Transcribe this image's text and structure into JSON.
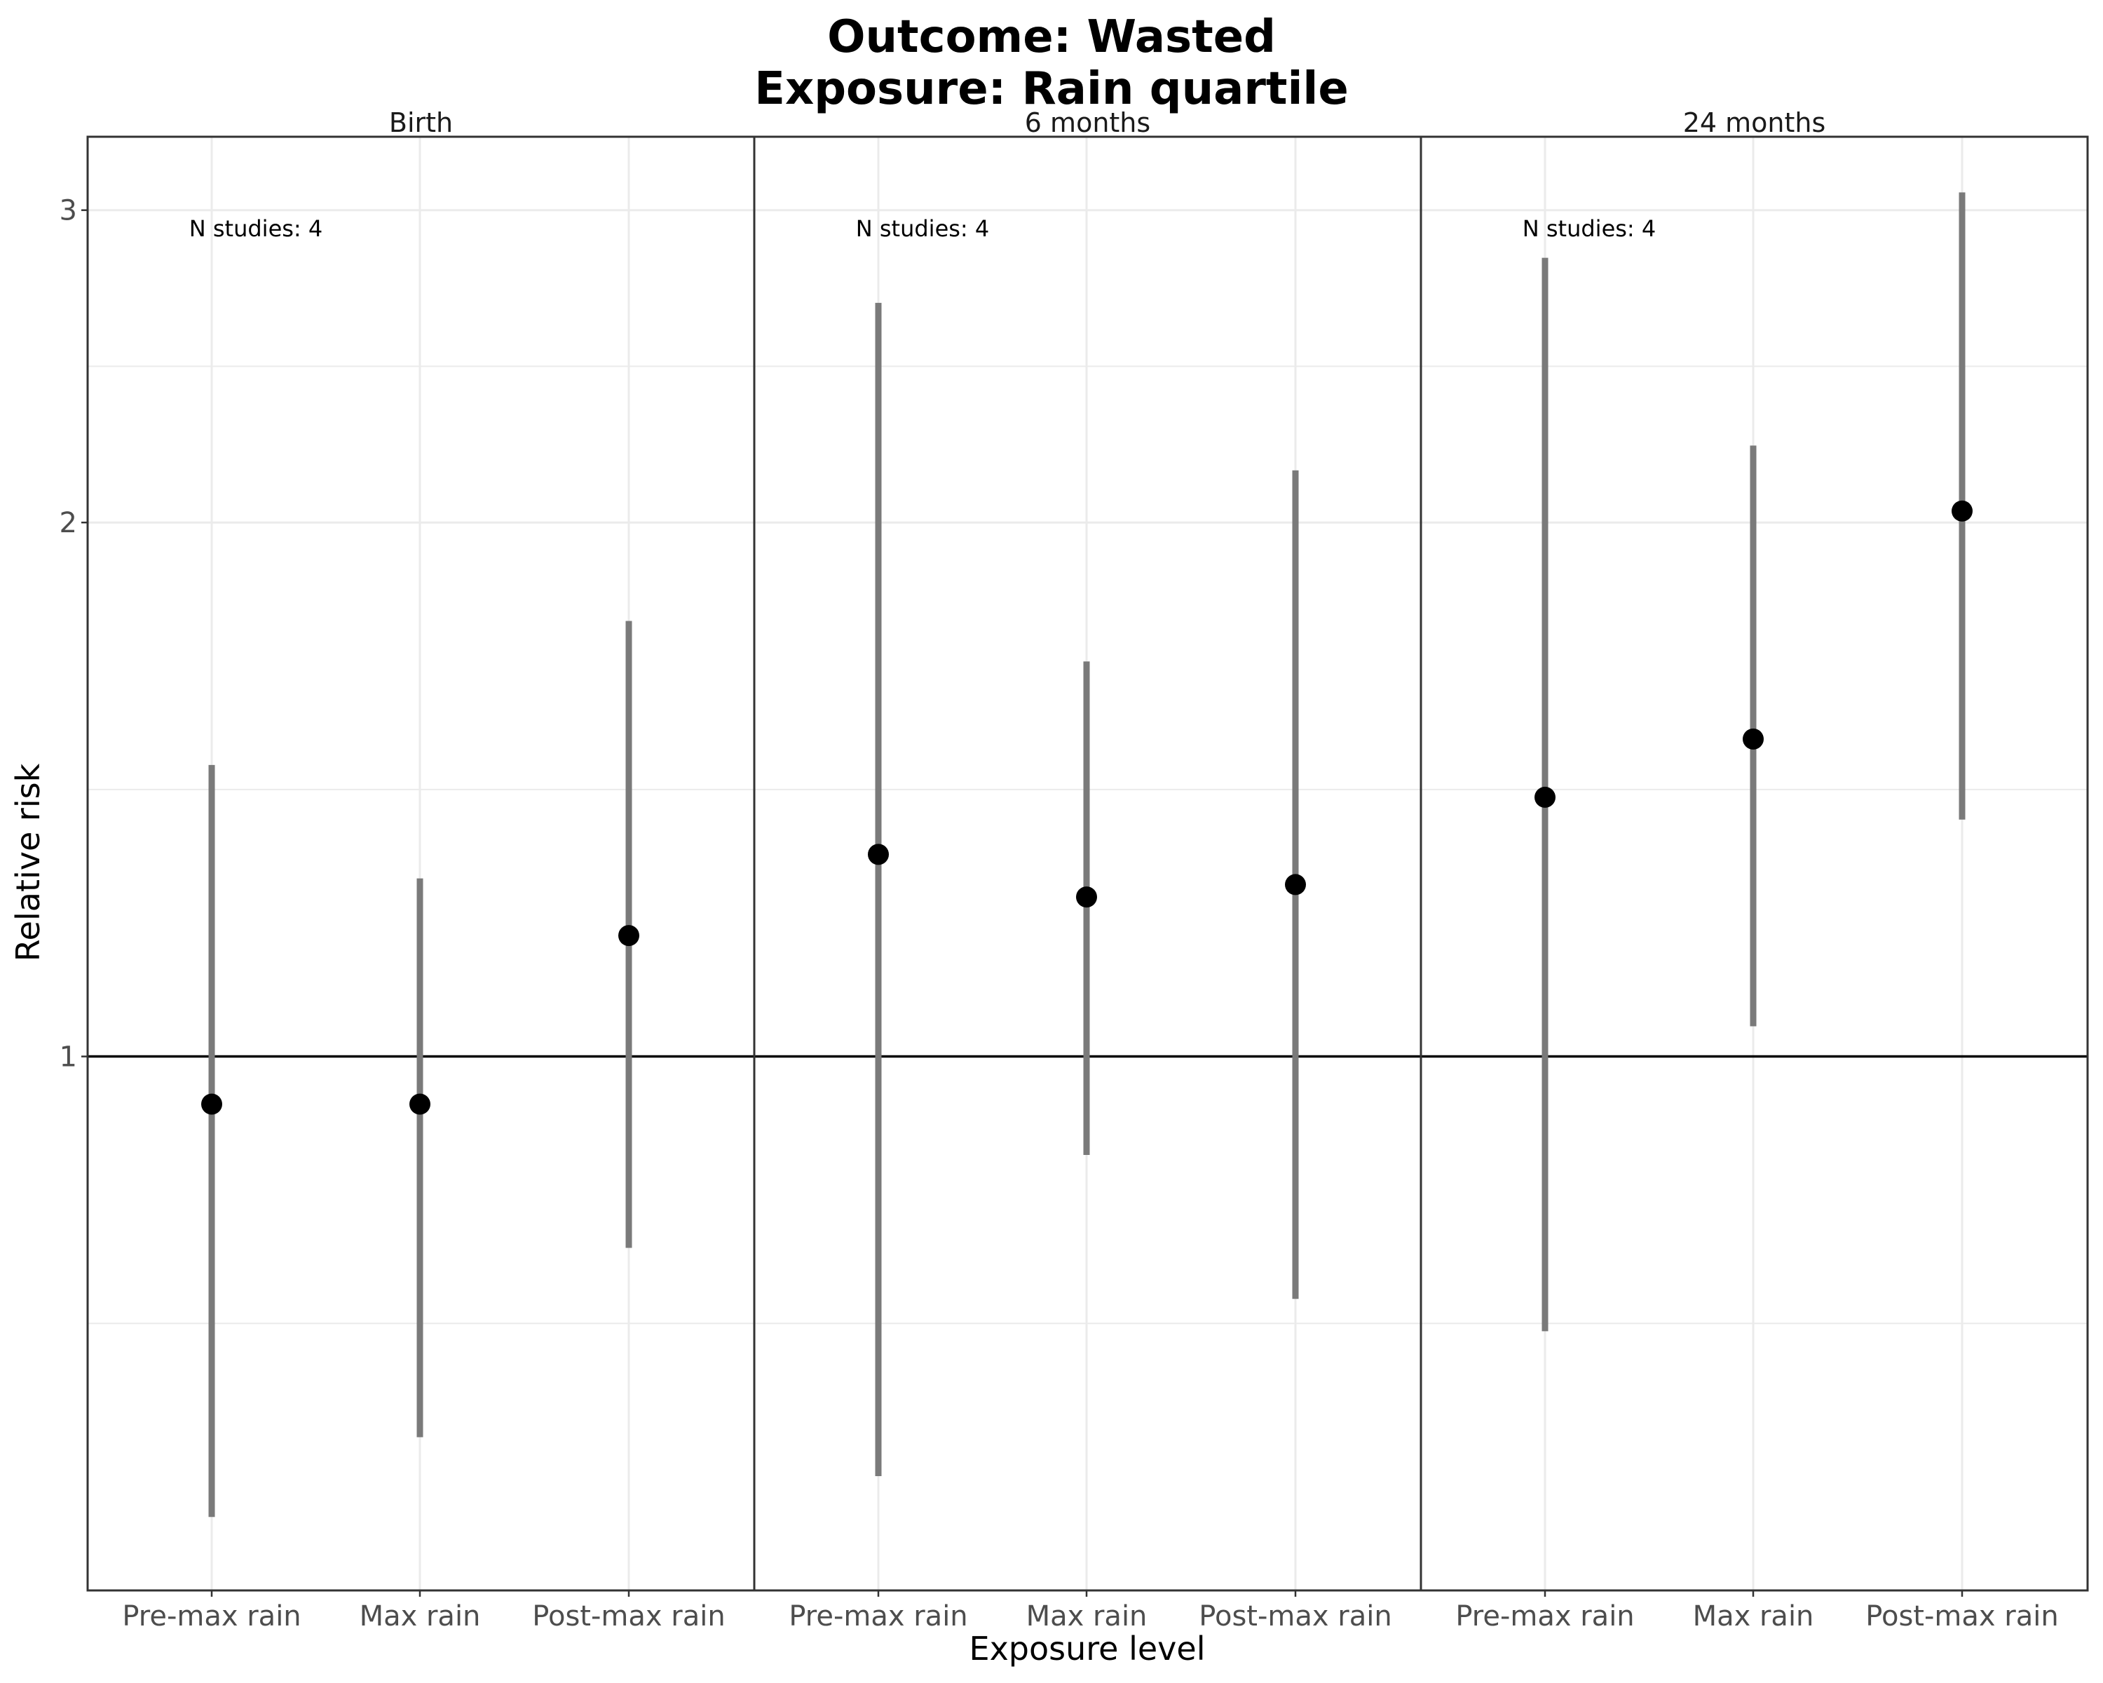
{
  "chart_data": {
    "type": "scatter",
    "title": [
      "Outcome: Wasted",
      "Exposure: Rain quartile"
    ],
    "xlabel": "Exposure level",
    "ylabel": "Relative risk",
    "y_scale": "log",
    "ylim": [
      0.5,
      3.3
    ],
    "y_ticks": [
      1,
      2,
      3
    ],
    "reference_line": 1,
    "grid": true,
    "categories": [
      "Pre-max rain",
      "Max rain",
      "Post-max rain"
    ],
    "colors": {
      "point": "#000000",
      "interval": "#7a7a7a",
      "grid": "#ebebeb",
      "panel_border": "#333333"
    },
    "panels": [
      {
        "label": "Birth",
        "annotation": "N studies: 4",
        "points": [
          {
            "x": "Pre-max rain",
            "estimate": 0.94,
            "lower": 0.55,
            "upper": 1.46
          },
          {
            "x": "Max rain",
            "estimate": 0.94,
            "lower": 0.61,
            "upper": 1.26
          },
          {
            "x": "Post-max rain",
            "estimate": 1.17,
            "lower": 0.78,
            "upper": 1.76
          }
        ]
      },
      {
        "label": "6 months",
        "annotation": "N studies: 4",
        "points": [
          {
            "x": "Pre-max rain",
            "estimate": 1.3,
            "lower": 0.58,
            "upper": 2.66
          },
          {
            "x": "Max rain",
            "estimate": 1.23,
            "lower": 0.88,
            "upper": 1.67
          },
          {
            "x": "Post-max rain",
            "estimate": 1.25,
            "lower": 0.73,
            "upper": 2.14
          }
        ]
      },
      {
        "label": "24 months",
        "annotation": "N studies: 4",
        "points": [
          {
            "x": "Pre-max rain",
            "estimate": 1.4,
            "lower": 0.7,
            "upper": 2.82
          },
          {
            "x": "Max rain",
            "estimate": 1.51,
            "lower": 1.04,
            "upper": 2.21
          },
          {
            "x": "Post-max rain",
            "estimate": 2.03,
            "lower": 1.36,
            "upper": 3.07
          }
        ]
      }
    ]
  }
}
